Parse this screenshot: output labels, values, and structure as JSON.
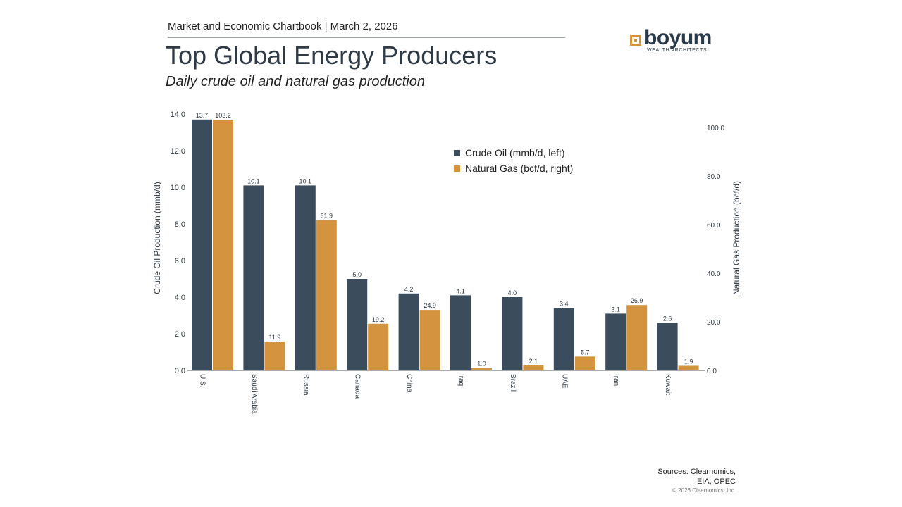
{
  "header": {
    "chartbook": "Market and Economic Chartbook | March 2, 2026",
    "title": "Top Global Energy Producers",
    "subtitle": "Daily crude oil and natural gas production"
  },
  "logo": {
    "word": "boyum",
    "tagline": "WEALTH ARCHITECTS",
    "accent": "#d4943f"
  },
  "footer": {
    "sources_line1": "Sources: Clearnomics,",
    "sources_line2": "EIA, OPEC",
    "copyright": "© 2026 Clearnomics, Inc."
  },
  "chart_data": {
    "type": "bar",
    "categories": [
      "U.S.",
      "Saudi Arabia",
      "Russia",
      "Canada",
      "China",
      "Iraq",
      "Brazil",
      "UAE",
      "Iran",
      "Kuwait"
    ],
    "series": [
      {
        "name": "Crude Oil (mmb/d, left)",
        "axis": "left",
        "color": "#3b4d5c",
        "values": [
          13.7,
          10.1,
          10.1,
          5.0,
          4.2,
          4.1,
          4.0,
          3.4,
          3.1,
          2.6
        ]
      },
      {
        "name": "Natural Gas (bcf/d, right)",
        "axis": "right",
        "color": "#d4943f",
        "values": [
          103.2,
          11.9,
          61.9,
          19.2,
          24.9,
          1.0,
          2.1,
          5.7,
          26.9,
          1.9
        ]
      }
    ],
    "ylabel_left": "Crude Oil Production (mmb/d)",
    "ylabel_right": "Natural Gas Production (bcf/d)",
    "ylim_left": [
      0,
      14
    ],
    "ylim_right": [
      0,
      105.5
    ],
    "yticks_left": [
      "0.0",
      "2.0",
      "4.0",
      "6.0",
      "8.0",
      "10.0",
      "12.0",
      "14.0"
    ],
    "yticks_right": [
      "0.0",
      "20.0",
      "40.0",
      "60.0",
      "80.0",
      "100.0"
    ],
    "legend_position": "top-right",
    "grid": false
  }
}
